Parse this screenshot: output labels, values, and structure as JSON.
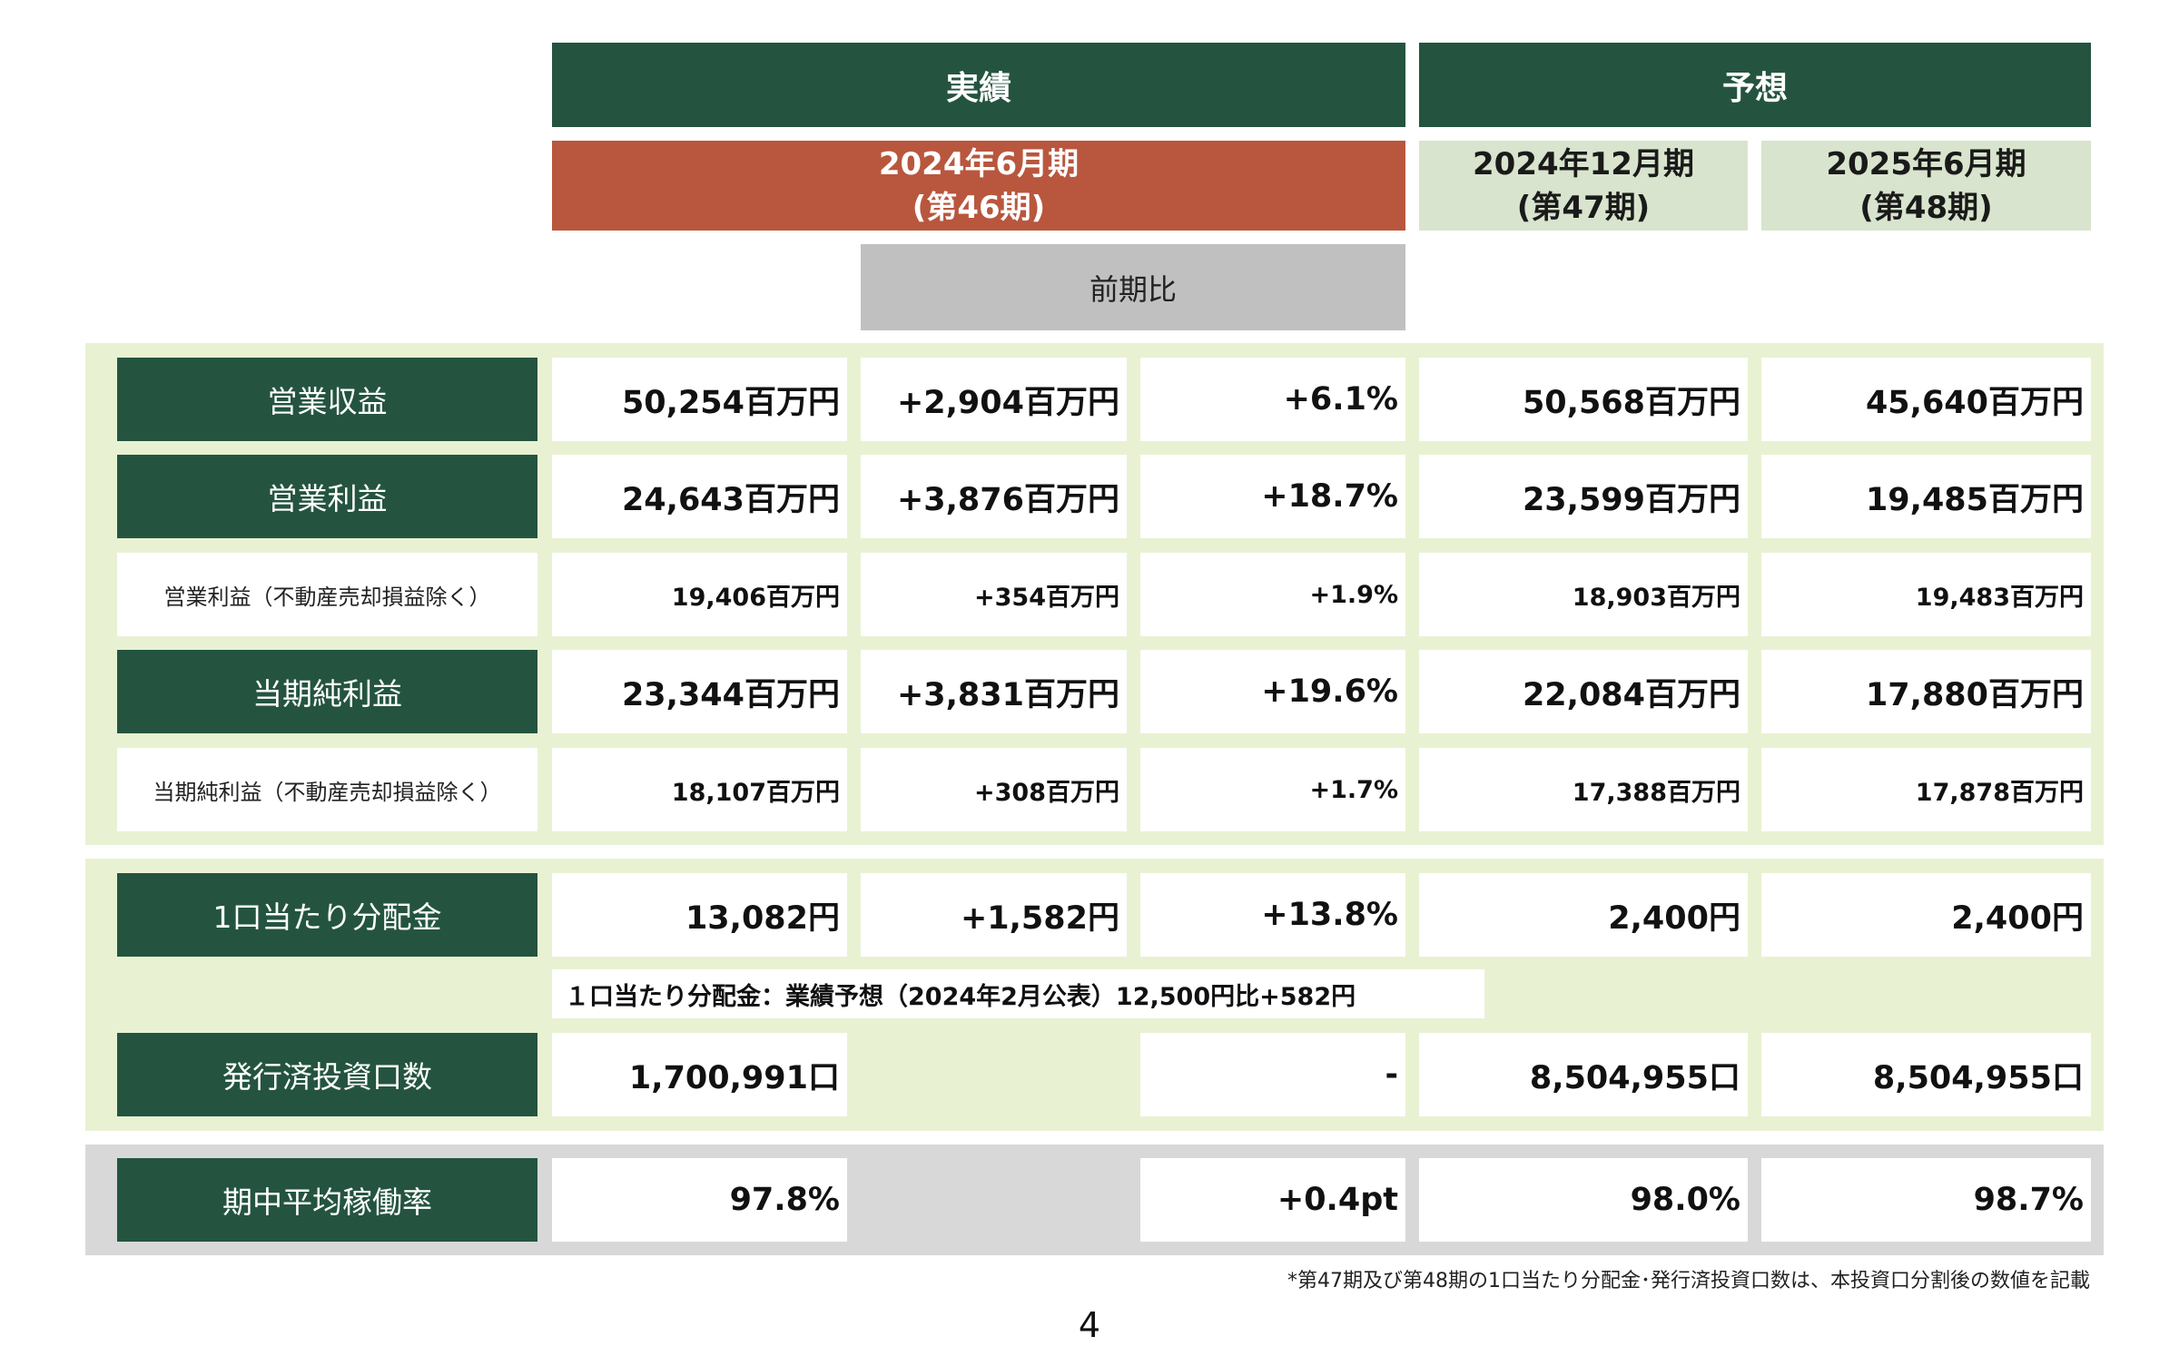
{
  "headers": {
    "actual": "実績",
    "forecast": "予想",
    "periods": [
      {
        "line1": "2024年6月期",
        "line2": "(第46期)"
      },
      {
        "line1": "2024年12月期",
        "line2": "(第47期)"
      },
      {
        "line1": "2025年6月期",
        "line2": "(第48期)"
      }
    ],
    "prev_compare": "前期比"
  },
  "rows": [
    {
      "label": "営業収益",
      "values": [
        "50,254百万円",
        "+2,904百万円",
        "+6.1%",
        "50,568百万円",
        "45,640百万円"
      ]
    },
    {
      "label": "営業利益",
      "values": [
        "24,643百万円",
        "+3,876百万円",
        "+18.7%",
        "23,599百万円",
        "19,485百万円"
      ]
    },
    {
      "label": "営業利益（不動産売却損益除く）",
      "values": [
        "19,406百万円",
        "+354百万円",
        "+1.9%",
        "18,903百万円",
        "19,483百万円"
      ]
    },
    {
      "label": "当期純利益",
      "values": [
        "23,344百万円",
        "+3,831百万円",
        "+19.6%",
        "22,084百万円",
        "17,880百万円"
      ]
    },
    {
      "label": "当期純利益（不動産売却損益除く）",
      "values": [
        "18,107百万円",
        "+308百万円",
        "+1.7%",
        "17,388百万円",
        "17,878百万円"
      ]
    },
    {
      "label": "1口当たり分配金",
      "values": [
        "13,082円",
        "+1,582円",
        "+13.8%",
        "2,400円",
        "2,400円"
      ]
    },
    {
      "label": "発行済投資口数",
      "values": [
        "1,700,991口",
        "",
        "-",
        "8,504,955口",
        "8,504,955口"
      ]
    },
    {
      "label": "期中平均稼働率",
      "values": [
        "97.8%",
        "",
        "+0.4pt",
        "98.0%",
        "98.7%"
      ]
    }
  ],
  "distribution_note": "１口当たり分配金：業績予想（2024年2月公表）12,500円比+582円",
  "footnote": "*第47期及び第48期の1口当たり分配金･発行済投資口数は、本投資口分割後の数値を記載",
  "page_number": "4",
  "colors": {
    "dark_green": "#245440",
    "actual_red": "#b8573e",
    "forecast_light": "#d8e4cd",
    "band_green": "#e9f1d3",
    "band_gray": "#d8d8d8",
    "header_gray": "#c0c0c0"
  }
}
